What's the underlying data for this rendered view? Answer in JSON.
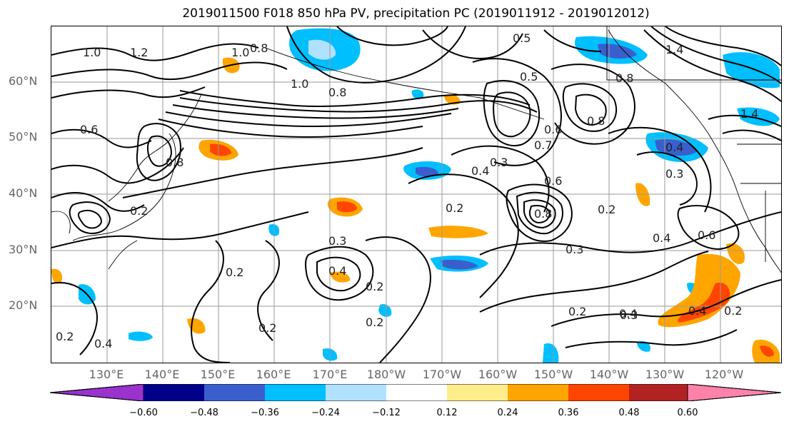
{
  "title": "2019011500 F018 850 hPa PV, precipitation PC (2019011912 - 2019012012)",
  "lat_labels": [
    "60°N",
    "50°N",
    "40°N",
    "30°N",
    "20°N"
  ],
  "lon_labels": [
    "130°E",
    "140°E",
    "150°E",
    "160°E",
    "170°E",
    "180°W",
    "170°W",
    "160°W",
    "150°W",
    "140°W",
    "130°W",
    "120°W"
  ],
  "colorbar": {
    "ticks": [
      "−0.60",
      "−0.48",
      "−0.36",
      "−0.24",
      "−0.12",
      "0.12",
      "0.24",
      "0.36",
      "0.48",
      "0.60"
    ],
    "colors": [
      "#9a32cd",
      "#00008b",
      "#3a5fcd",
      "#00bfff",
      "#b0e2ff",
      "#ffffff",
      "#ffec8b",
      "#ffa500",
      "#ff4500",
      "#b22222",
      "#ff82ab"
    ]
  },
  "contour_labels": [
    "1.0",
    "1.2",
    "1.0",
    "0.8",
    "0.5",
    "1.4",
    "0.5",
    "0.8",
    "1.0",
    "1.4",
    "0.8",
    "0.6",
    "0.8",
    "0.8",
    "0.4",
    "0.3",
    "0.6",
    "0.7",
    "0.4",
    "0.3",
    "0.2",
    "0.6",
    "0.8",
    "0.2",
    "0.3",
    "0.3",
    "0.4",
    "0.6",
    "0.2",
    "0.4",
    "0.2",
    "0.2",
    "0.4",
    "0.2",
    "0.2",
    "0.3",
    "0.4",
    "0.2",
    "0.2",
    "0.4",
    "0.2"
  ]
}
